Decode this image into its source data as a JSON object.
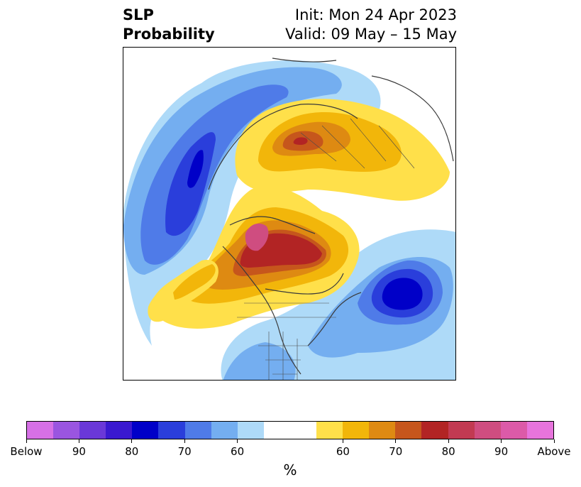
{
  "title": {
    "left_line1": "SLP",
    "left_line2": "Probability",
    "right_line1": "Init: Mon 24 Apr 2023",
    "right_line2": "Valid: 09 May – 15 May"
  },
  "map": {
    "projection": "north-polar-stereographic",
    "features": [
      "sea-level-pressure-probability-shading",
      "coastlines",
      "country-borders",
      "us-state-borders"
    ]
  },
  "colorbar": {
    "segments": [
      {
        "category": "Below",
        "color": "#d670e6"
      },
      {
        "category": "Below",
        "color": "#9a55e0"
      },
      {
        "category": "Below",
        "color": "#6a38d8"
      },
      {
        "category": "Below",
        "color": "#3a19d0"
      },
      {
        "category": "Below",
        "color": "#0000c8"
      },
      {
        "category": "Below",
        "color": "#2a3edb"
      },
      {
        "category": "Below",
        "color": "#4f7be8"
      },
      {
        "category": "Below",
        "color": "#74aef0"
      },
      {
        "category": "Below",
        "color": "#aedaf8"
      },
      {
        "category": "Neutral",
        "color": "#ffffff"
      },
      {
        "category": "Neutral",
        "color": "#ffffff"
      },
      {
        "category": "Above",
        "color": "#ffe04a"
      },
      {
        "category": "Above",
        "color": "#f2b60a"
      },
      {
        "category": "Above",
        "color": "#de8a12"
      },
      {
        "category": "Above",
        "color": "#c6561c"
      },
      {
        "category": "Above",
        "color": "#b22424"
      },
      {
        "category": "Above",
        "color": "#c23a52"
      },
      {
        "category": "Above",
        "color": "#cf4d80"
      },
      {
        "category": "Above",
        "color": "#dc5aa8"
      },
      {
        "category": "Above",
        "color": "#e774dc"
      }
    ],
    "tick_labels": [
      "Below",
      "90",
      "80",
      "70",
      "60",
      "60",
      "70",
      "80",
      "90",
      "Above"
    ],
    "tick_fractions": [
      0,
      0.1,
      0.2,
      0.3,
      0.4,
      0.6,
      0.7,
      0.8,
      0.9,
      1.0
    ],
    "unit_label": "%"
  }
}
